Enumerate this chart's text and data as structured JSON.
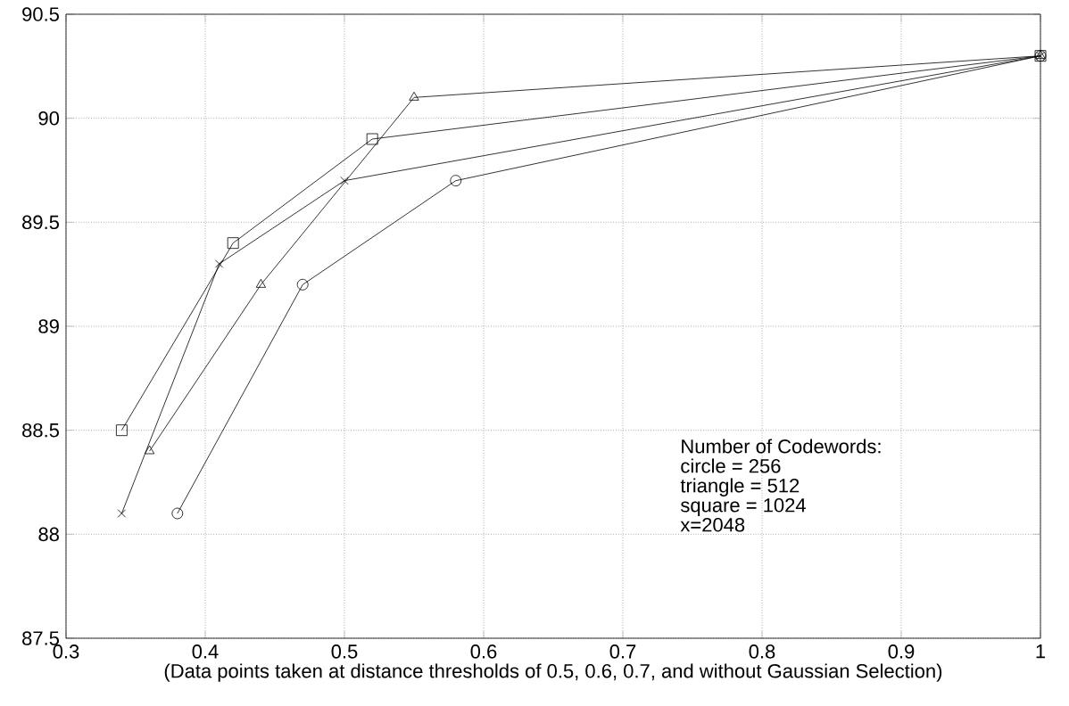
{
  "chart_data": {
    "type": "line",
    "xlabel": "(Data points taken at distance thresholds of 0.5, 0.6, 0.7, and without Gaussian Selection)",
    "xlim": [
      0.3,
      1
    ],
    "xticks": [
      0.3,
      0.4,
      0.5,
      0.6,
      0.7,
      0.8,
      0.9,
      1
    ],
    "ylim": [
      87.5,
      90.5
    ],
    "yticks": [
      87.5,
      88,
      88.5,
      89,
      89.5,
      90,
      90.5
    ],
    "grid": true,
    "line_style": "solid",
    "annotations": [
      "Number of Codewords:",
      "circle = 256",
      "triangle = 512",
      "square = 1024",
      "x=2048"
    ],
    "series": [
      {
        "marker": "circle",
        "color": "#000000",
        "x": [
          0.38,
          0.47,
          0.58,
          1.0
        ],
        "values": [
          88.1,
          89.2,
          89.7,
          90.3
        ]
      },
      {
        "marker": "triangle",
        "color": "#000000",
        "x": [
          0.36,
          0.44,
          0.55,
          1.0
        ],
        "values": [
          88.4,
          89.2,
          90.1,
          90.3
        ]
      },
      {
        "marker": "square",
        "color": "#000000",
        "x": [
          0.34,
          0.42,
          0.52,
          1.0
        ],
        "values": [
          88.5,
          89.4,
          89.9,
          90.3
        ]
      },
      {
        "marker": "cross",
        "color": "#000000",
        "x": [
          0.34,
          0.41,
          0.5,
          1.0
        ],
        "values": [
          88.1,
          89.3,
          89.7,
          90.3
        ]
      }
    ]
  }
}
